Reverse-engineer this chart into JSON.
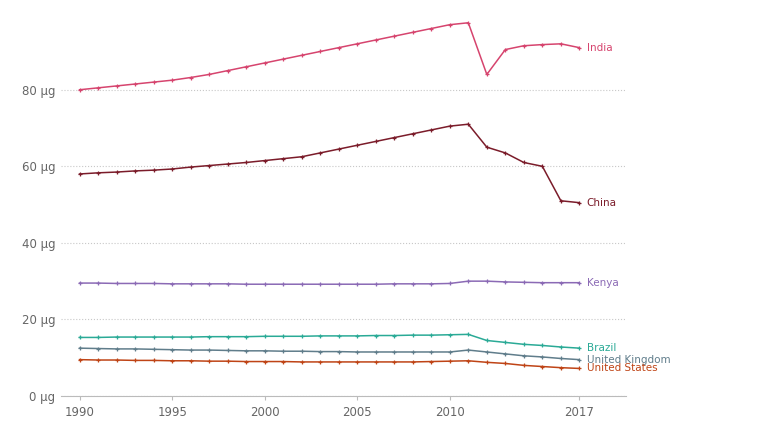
{
  "years": [
    1990,
    1991,
    1992,
    1993,
    1994,
    1995,
    1996,
    1997,
    1998,
    1999,
    2000,
    2001,
    2002,
    2003,
    2004,
    2005,
    2006,
    2007,
    2008,
    2009,
    2010,
    2011,
    2012,
    2013,
    2014,
    2015,
    2016,
    2017
  ],
  "India": [
    80.0,
    80.5,
    81.0,
    81.5,
    82.0,
    82.5,
    83.2,
    84.0,
    85.0,
    86.0,
    87.0,
    88.0,
    89.0,
    90.0,
    91.0,
    92.0,
    93.0,
    94.0,
    95.0,
    96.0,
    97.0,
    97.5,
    84.0,
    90.5,
    91.5,
    91.8,
    92.0,
    91.0
  ],
  "China": [
    58.0,
    58.3,
    58.5,
    58.8,
    59.0,
    59.3,
    59.8,
    60.2,
    60.6,
    61.0,
    61.5,
    62.0,
    62.5,
    63.5,
    64.5,
    65.5,
    66.5,
    67.5,
    68.5,
    69.5,
    70.5,
    71.0,
    65.0,
    63.5,
    61.0,
    60.0,
    51.0,
    50.5
  ],
  "Kenya": [
    29.5,
    29.5,
    29.4,
    29.4,
    29.4,
    29.3,
    29.3,
    29.3,
    29.3,
    29.2,
    29.2,
    29.2,
    29.2,
    29.2,
    29.2,
    29.2,
    29.2,
    29.3,
    29.3,
    29.3,
    29.4,
    30.0,
    30.0,
    29.8,
    29.7,
    29.6,
    29.6,
    29.6
  ],
  "Brazil": [
    15.3,
    15.3,
    15.4,
    15.4,
    15.4,
    15.4,
    15.4,
    15.5,
    15.5,
    15.5,
    15.6,
    15.6,
    15.6,
    15.7,
    15.7,
    15.7,
    15.8,
    15.8,
    15.9,
    15.9,
    16.0,
    16.1,
    14.5,
    14.0,
    13.5,
    13.2,
    12.8,
    12.5
  ],
  "United Kingdom": [
    12.5,
    12.4,
    12.3,
    12.3,
    12.2,
    12.1,
    12.0,
    12.0,
    11.9,
    11.8,
    11.8,
    11.7,
    11.7,
    11.6,
    11.6,
    11.5,
    11.5,
    11.5,
    11.5,
    11.5,
    11.5,
    12.0,
    11.5,
    11.0,
    10.5,
    10.2,
    9.8,
    9.5
  ],
  "United States": [
    9.5,
    9.4,
    9.4,
    9.3,
    9.3,
    9.2,
    9.2,
    9.1,
    9.1,
    9.0,
    9.0,
    9.0,
    8.9,
    8.9,
    8.9,
    8.9,
    8.9,
    8.9,
    8.9,
    9.0,
    9.1,
    9.2,
    8.8,
    8.5,
    8.0,
    7.7,
    7.4,
    7.2
  ],
  "colors": {
    "India": "#d6446e",
    "China": "#7b1c2a",
    "Kenya": "#8b6ab5",
    "Brazil": "#2aaa96",
    "United Kingdom": "#607d8b",
    "United States": "#bf4416"
  },
  "ylim": [
    0,
    100
  ],
  "yticks": [
    0,
    20,
    40,
    60,
    80
  ],
  "ytick_labels": [
    "0 μg",
    "20 μg",
    "40 μg",
    "60 μg",
    "80 μg"
  ],
  "xticks": [
    1990,
    1995,
    2000,
    2005,
    2010,
    2017
  ],
  "background_color": "#ffffff",
  "label_offsets": {
    "India": 0.3,
    "China": 0.3,
    "Kenya": 0.3,
    "Brazil": 0.3,
    "United Kingdom": 0.3,
    "United States": 0.3
  }
}
